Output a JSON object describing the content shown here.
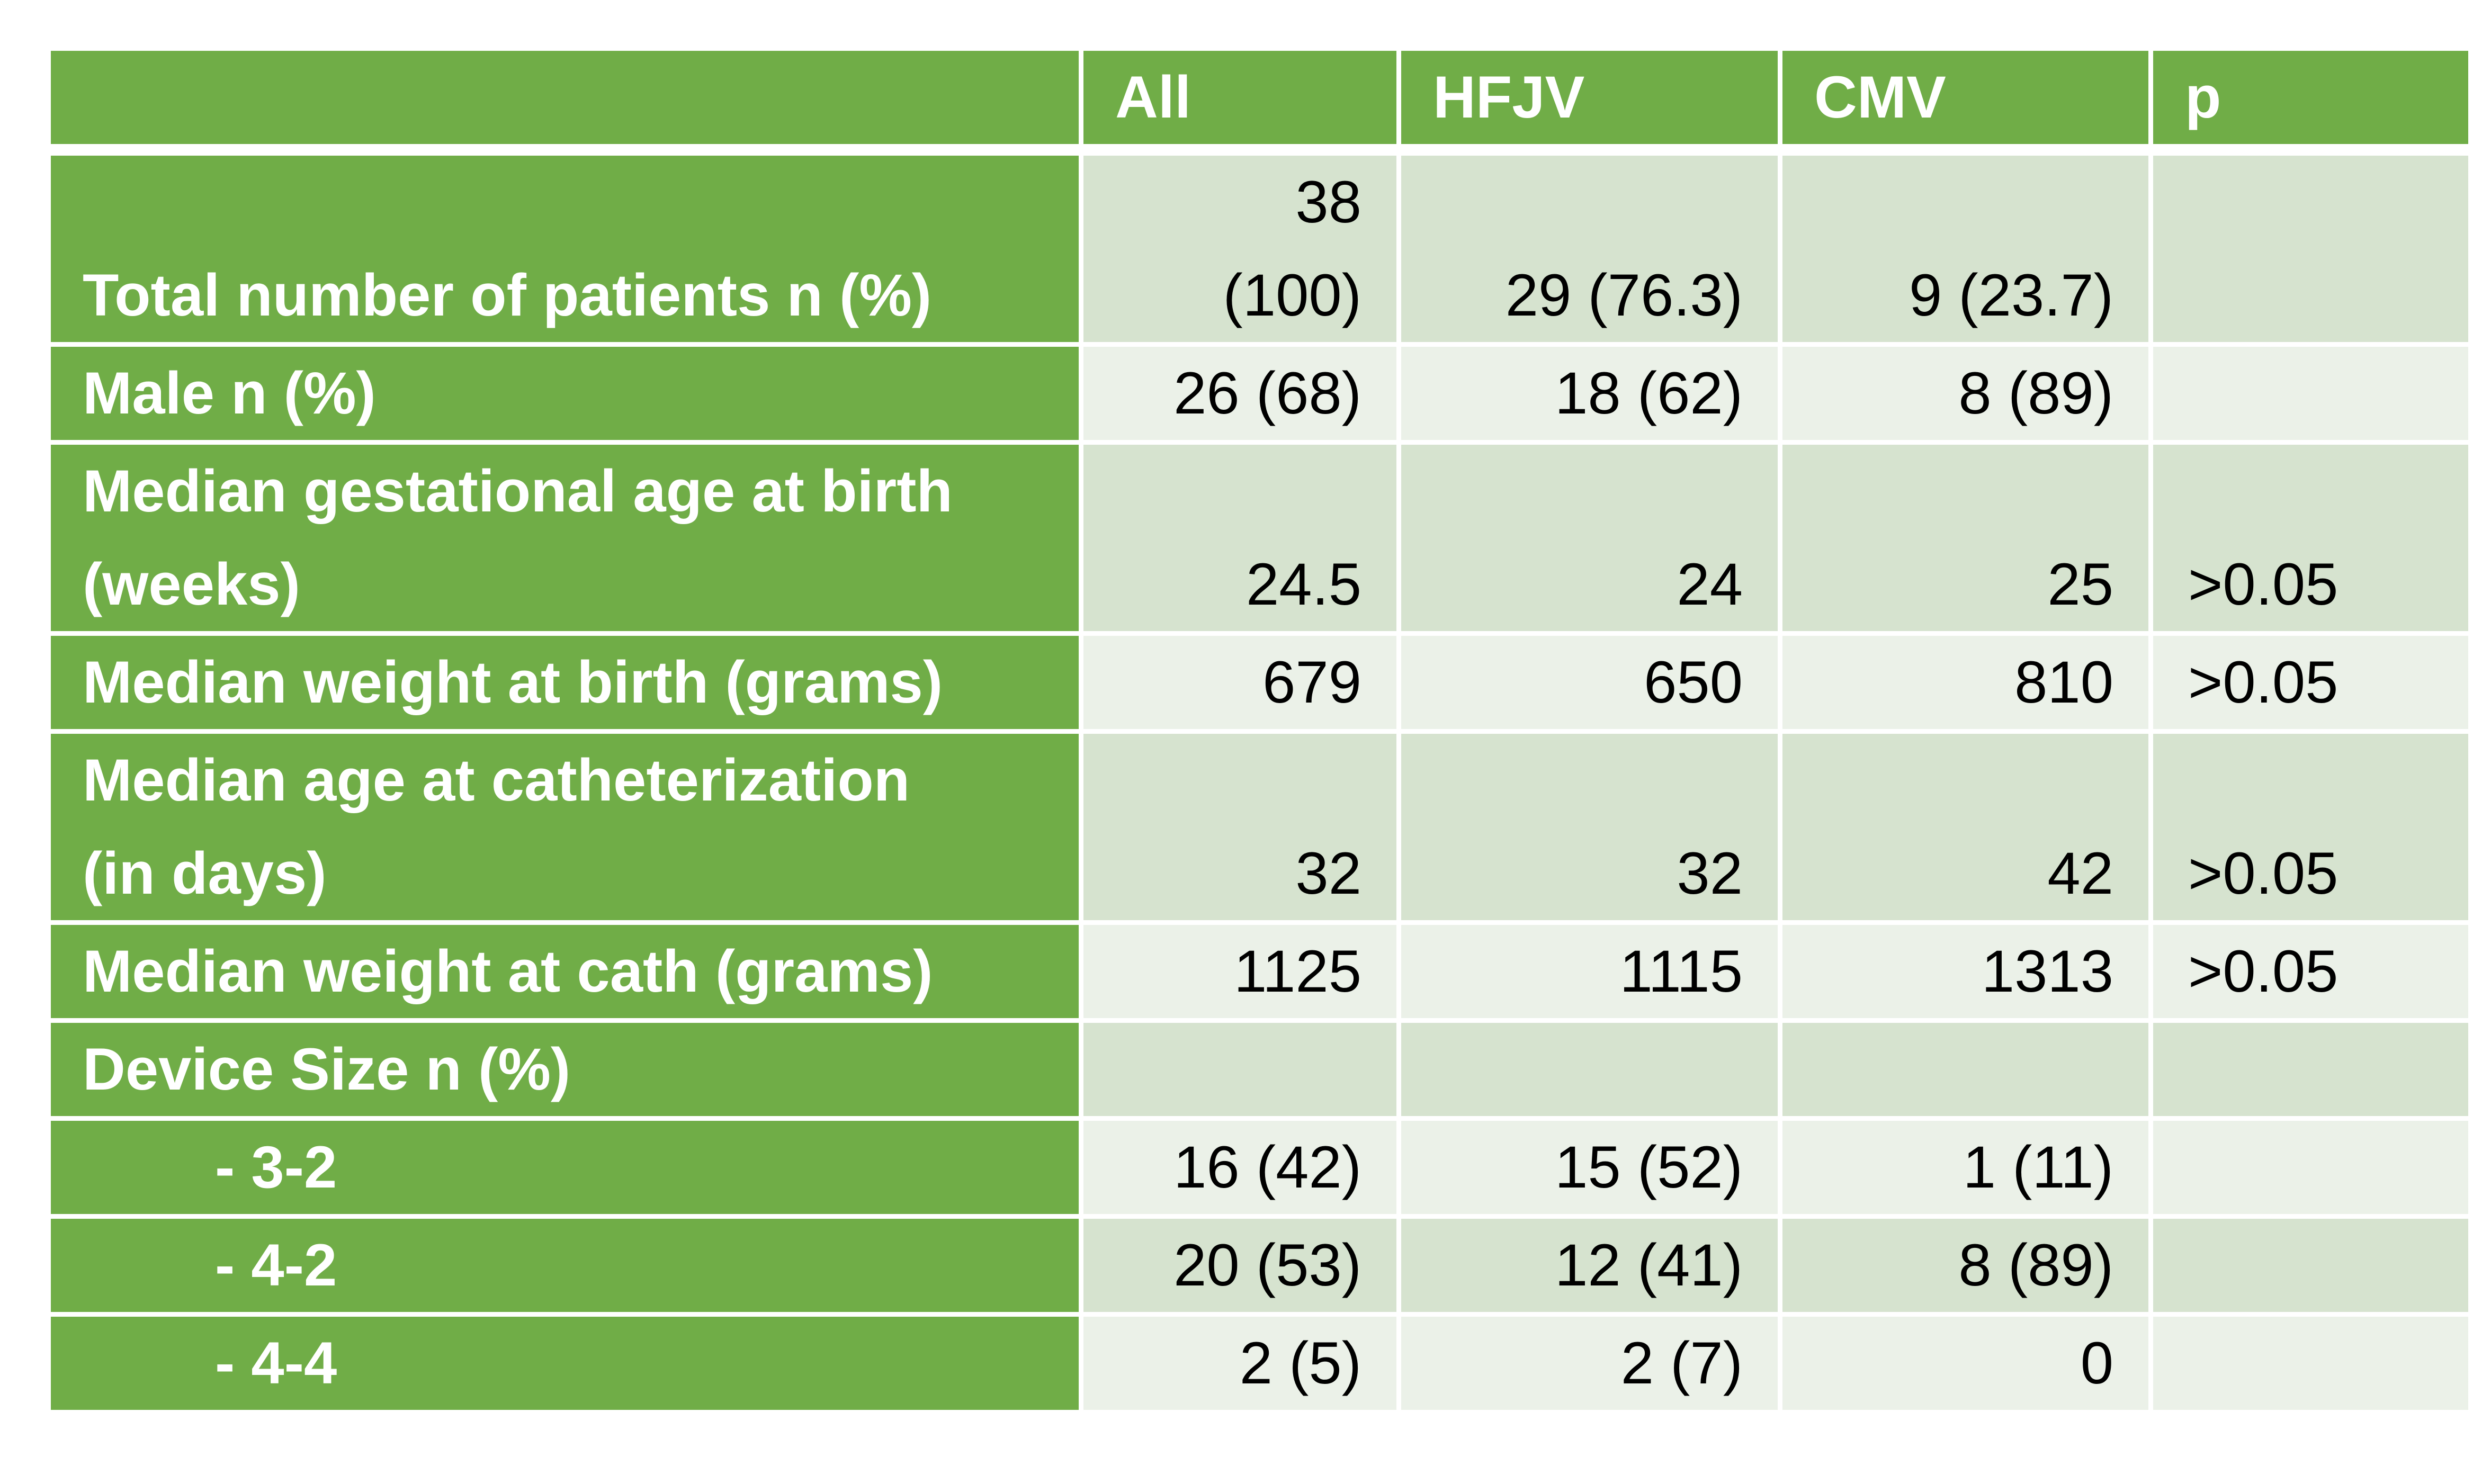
{
  "table": {
    "headers": [
      "",
      "All",
      "HFJV",
      "CMV",
      "p"
    ],
    "rows": [
      {
        "label_lines": [
          "Total number of patients n (%)"
        ],
        "all": [
          "38",
          "(100)"
        ],
        "hfjv": "29 (76.3)",
        "cmv": "9 (23.7)",
        "p": ""
      },
      {
        "label_lines": [
          "Male n (%)"
        ],
        "all": [
          "26 (68)"
        ],
        "hfjv": "18 (62)",
        "cmv": "8  (89)",
        "p": ""
      },
      {
        "label_lines": [
          "Median gestational age at birth",
          "(weeks)"
        ],
        "all": [
          "24.5"
        ],
        "hfjv": "24",
        "cmv": "25",
        "p": ">0.05"
      },
      {
        "label_lines": [
          "Median weight at birth (grams)"
        ],
        "all": [
          "679"
        ],
        "hfjv": "650",
        "cmv": "810",
        "p": ">0.05"
      },
      {
        "label_lines": [
          "Median age at catheterization",
          "(in days)"
        ],
        "all": [
          "32"
        ],
        "hfjv": "32",
        "cmv": "42",
        "p": ">0.05"
      },
      {
        "label_lines": [
          "Median weight at cath (grams)"
        ],
        "all": [
          "1125"
        ],
        "hfjv": "1115",
        "cmv": "1313",
        "p": ">0.05"
      },
      {
        "label_lines": [
          "Device Size n (%)"
        ],
        "all": [
          ""
        ],
        "hfjv": "",
        "cmv": "",
        "p": ""
      },
      {
        "label_lines": [
          "- 3-2"
        ],
        "all": [
          "16 (42)"
        ],
        "hfjv": "15 (52)",
        "cmv": "1 (11)",
        "p": ""
      },
      {
        "label_lines": [
          "- 4-2"
        ],
        "all": [
          "20 (53)"
        ],
        "hfjv": "12 (41)",
        "cmv": "8 (89)",
        "p": ""
      },
      {
        "label_lines": [
          "- 4-4"
        ],
        "all": [
          "2 (5)"
        ],
        "hfjv": "2 (7)",
        "cmv": "0",
        "p": ""
      }
    ]
  },
  "colors": {
    "header_green": "#70ad47",
    "band_dark": "#d6e3cf",
    "band_light": "#ebf1e8"
  }
}
